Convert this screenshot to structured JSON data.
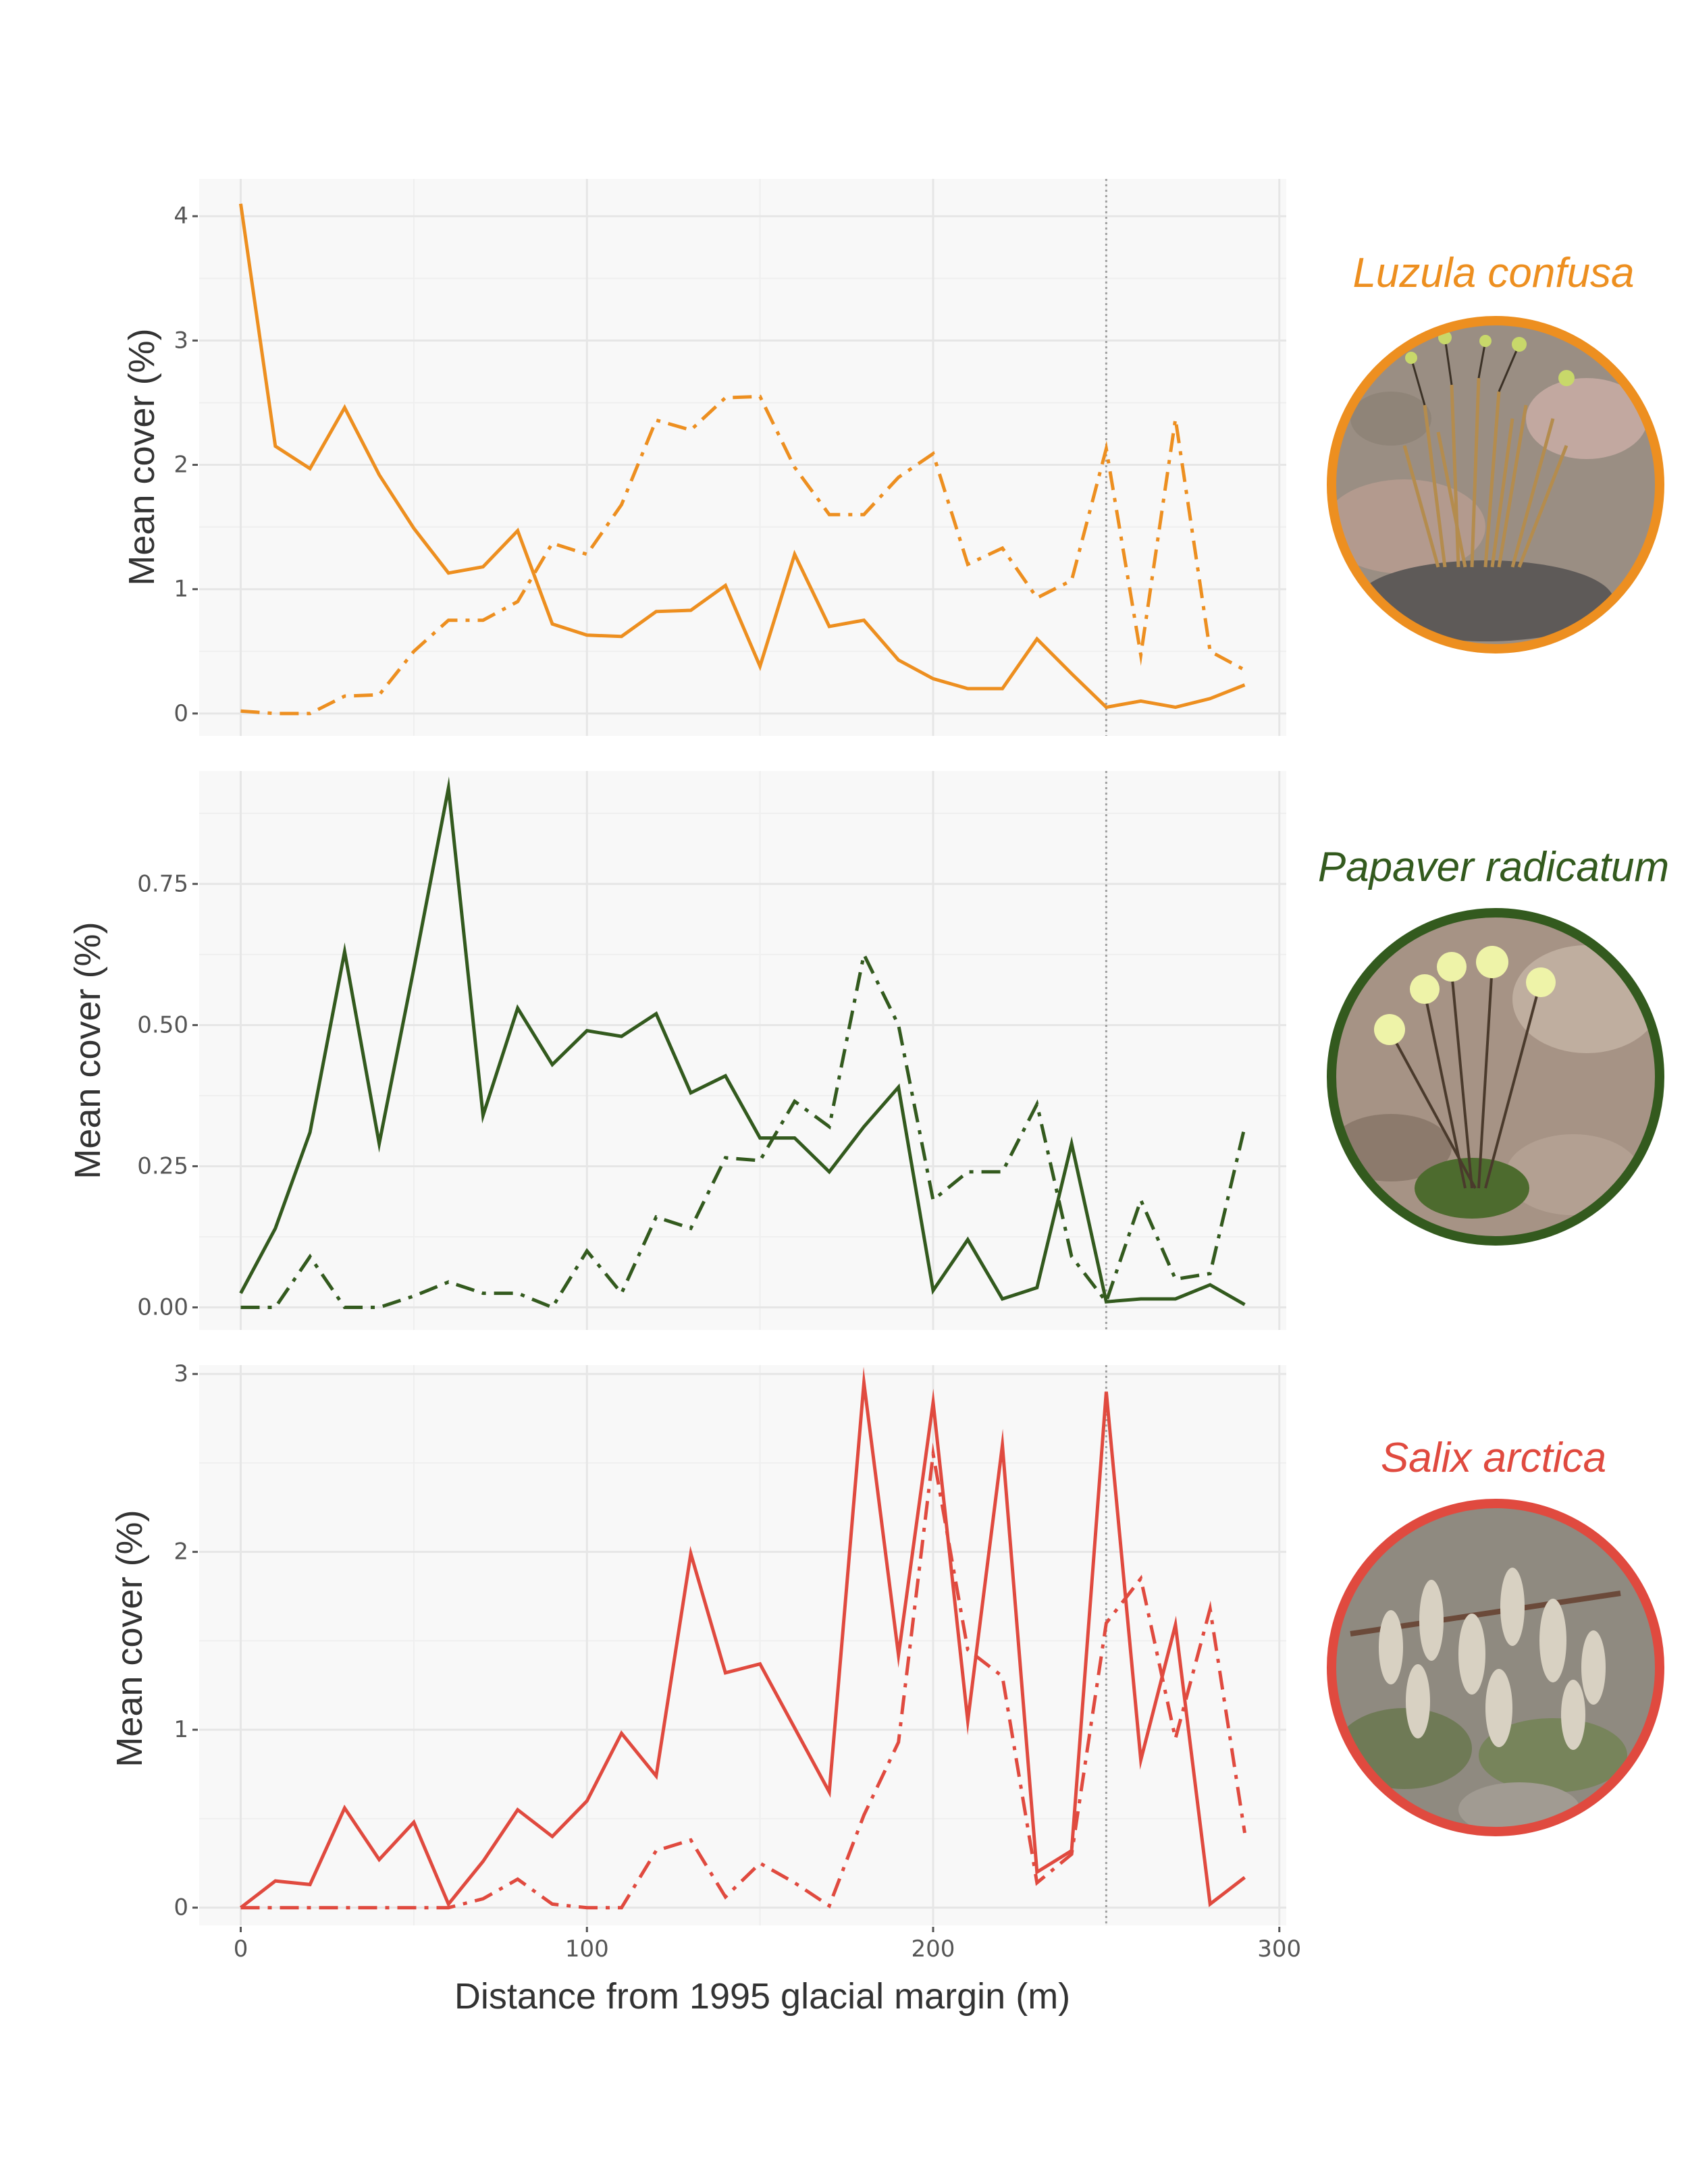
{
  "xaxis": {
    "label": "Distance from 1995 glacial margin (m)",
    "ticks": [
      0,
      100,
      200,
      300
    ],
    "xlim": [
      -12,
      302
    ],
    "reference_line": 250
  },
  "panels": [
    {
      "species": "Luzula confusa",
      "image_icon": "luzula-confusa-photo",
      "color": "#ed8f20",
      "ylabel": "Mean cover (%)",
      "ylim": [
        -0.18,
        4.3
      ],
      "yticks": [
        0,
        1,
        2,
        3,
        4
      ],
      "ytick_labels": [
        "0",
        "1",
        "2",
        "3",
        "4"
      ]
    },
    {
      "species": "Papaver radicatum",
      "image_icon": "papaver-radicatum-photo",
      "color": "#335a1e",
      "ylabel": "Mean cover (%)",
      "ylim": [
        -0.04,
        0.95
      ],
      "yticks": [
        0,
        0.25,
        0.5,
        0.75
      ],
      "ytick_labels": [
        "0.00",
        "0.25",
        "0.50",
        "0.75"
      ]
    },
    {
      "species": "Salix arctica",
      "image_icon": "salix-arctica-photo",
      "color": "#e04a3f",
      "ylabel": "Mean cover (%)",
      "ylim": [
        -0.1,
        3.05
      ],
      "yticks": [
        0,
        1,
        2,
        3
      ],
      "ytick_labels": [
        "0",
        "1",
        "2",
        "3"
      ]
    }
  ],
  "chart_data": [
    {
      "type": "line",
      "xlabel": "Distance from 1995 glacial margin (m)",
      "ylabel": "Mean cover (%)",
      "x": [
        0,
        10,
        20,
        30,
        40,
        50,
        60,
        70,
        80,
        90,
        100,
        110,
        120,
        130,
        140,
        150,
        160,
        170,
        180,
        190,
        200,
        210,
        220,
        230,
        240,
        250,
        260,
        270,
        280,
        290
      ],
      "series": [
        {
          "line_style": "solid",
          "values": [
            4.1,
            2.15,
            1.97,
            2.46,
            1.92,
            1.49,
            1.13,
            1.18,
            1.47,
            0.72,
            0.63,
            0.62,
            0.82,
            0.83,
            1.03,
            0.38,
            1.28,
            0.7,
            0.75,
            0.43,
            0.28,
            0.2,
            0.2,
            0.6,
            0.32,
            0.05,
            0.1,
            0.05,
            0.12,
            0.23
          ]
        },
        {
          "line_style": "dashed",
          "values": [
            0.02,
            0.0,
            0.0,
            0.14,
            0.15,
            0.5,
            0.75,
            0.75,
            0.9,
            1.37,
            1.28,
            1.68,
            2.36,
            2.28,
            2.54,
            2.55,
            1.98,
            1.6,
            1.6,
            1.9,
            2.09,
            1.2,
            1.33,
            0.93,
            1.07,
            2.13,
            0.47,
            2.37,
            0.5,
            0.35
          ]
        }
      ]
    },
    {
      "type": "line",
      "xlabel": "Distance from 1995 glacial margin (m)",
      "ylabel": "Mean cover (%)",
      "x": [
        0,
        10,
        20,
        30,
        40,
        50,
        60,
        70,
        80,
        90,
        100,
        110,
        120,
        130,
        140,
        150,
        160,
        170,
        180,
        190,
        200,
        210,
        220,
        230,
        240,
        250,
        260,
        270,
        280,
        290
      ],
      "series": [
        {
          "line_style": "solid",
          "values": [
            0.025,
            0.14,
            0.31,
            0.63,
            0.29,
            0.6,
            0.92,
            0.34,
            0.53,
            0.43,
            0.49,
            0.48,
            0.52,
            0.38,
            0.41,
            0.3,
            0.3,
            0.24,
            0.32,
            0.39,
            0.03,
            0.12,
            0.015,
            0.035,
            0.29,
            0.01,
            0.015,
            0.015,
            0.04,
            0.005
          ]
        },
        {
          "line_style": "dashed",
          "values": [
            0.0,
            0.0,
            0.09,
            0.0,
            0.0,
            0.02,
            0.045,
            0.025,
            0.025,
            0.0,
            0.1,
            0.025,
            0.16,
            0.14,
            0.265,
            0.26,
            0.365,
            0.32,
            0.625,
            0.5,
            0.19,
            0.24,
            0.24,
            0.36,
            0.09,
            0.01,
            0.19,
            0.05,
            0.06,
            0.32
          ]
        }
      ]
    },
    {
      "type": "line",
      "xlabel": "Distance from 1995 glacial margin (m)",
      "ylabel": "Mean cover (%)",
      "x": [
        0,
        10,
        20,
        30,
        40,
        50,
        60,
        70,
        80,
        90,
        100,
        110,
        120,
        130,
        140,
        150,
        160,
        170,
        180,
        190,
        200,
        210,
        220,
        230,
        240,
        250,
        260,
        270,
        280,
        290
      ],
      "series": [
        {
          "line_style": "solid",
          "values": [
            0.0,
            0.15,
            0.13,
            0.56,
            0.27,
            0.48,
            0.02,
            0.26,
            0.55,
            0.4,
            0.6,
            0.98,
            0.74,
            1.99,
            1.32,
            1.37,
            1.01,
            0.65,
            2.95,
            1.42,
            2.84,
            1.05,
            2.6,
            0.2,
            0.32,
            2.9,
            0.83,
            1.59,
            0.02,
            0.17
          ]
        },
        {
          "line_style": "dashed",
          "values": [
            0.0,
            0.0,
            0.0,
            0.0,
            0.0,
            0.0,
            0.0,
            0.05,
            0.16,
            0.02,
            0.0,
            0.0,
            0.32,
            0.38,
            0.06,
            0.25,
            0.14,
            0.01,
            0.52,
            0.93,
            2.55,
            1.45,
            1.3,
            0.14,
            0.3,
            1.6,
            1.85,
            0.95,
            1.68,
            0.42
          ]
        }
      ]
    }
  ]
}
